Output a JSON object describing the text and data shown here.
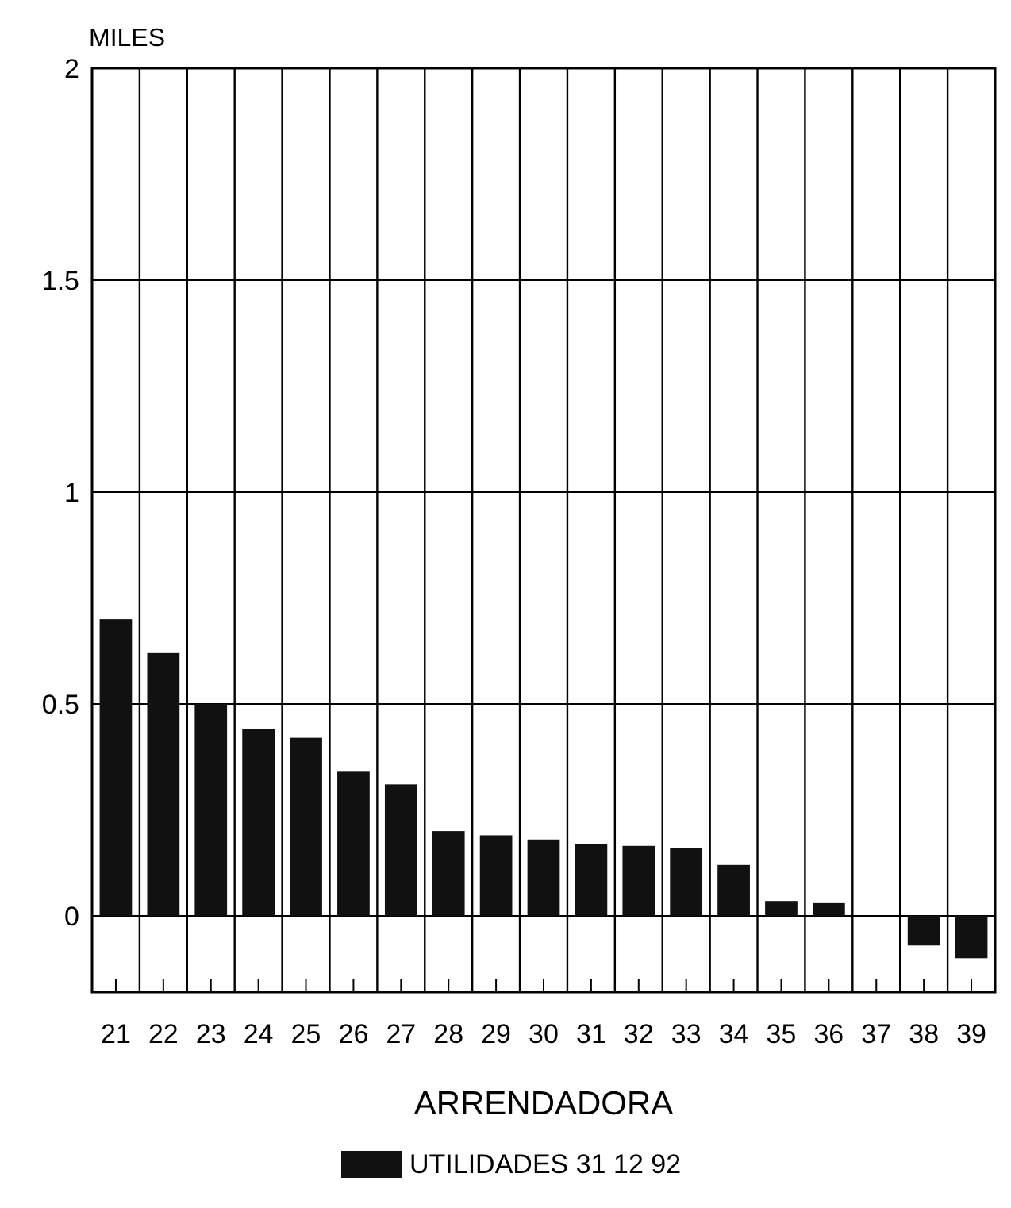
{
  "chart_data": {
    "type": "bar",
    "ylabel": "MILES",
    "xlabel": "ARRENDADORA",
    "categories": [
      "21",
      "22",
      "23",
      "24",
      "25",
      "26",
      "27",
      "28",
      "29",
      "30",
      "31",
      "32",
      "33",
      "34",
      "35",
      "36",
      "37",
      "38",
      "39"
    ],
    "series": [
      {
        "name": "UTILIDADES 31 12 92",
        "color": "#111111",
        "values": [
          0.7,
          0.62,
          0.5,
          0.44,
          0.42,
          0.34,
          0.31,
          0.2,
          0.19,
          0.18,
          0.17,
          0.165,
          0.16,
          0.12,
          0.035,
          0.03,
          0,
          -0.07,
          -0.1
        ]
      }
    ],
    "ylim": [
      -0.18,
      2
    ],
    "yticks": [
      0,
      0.5,
      1,
      1.5,
      2
    ],
    "grid": true,
    "legend": "bottom"
  }
}
